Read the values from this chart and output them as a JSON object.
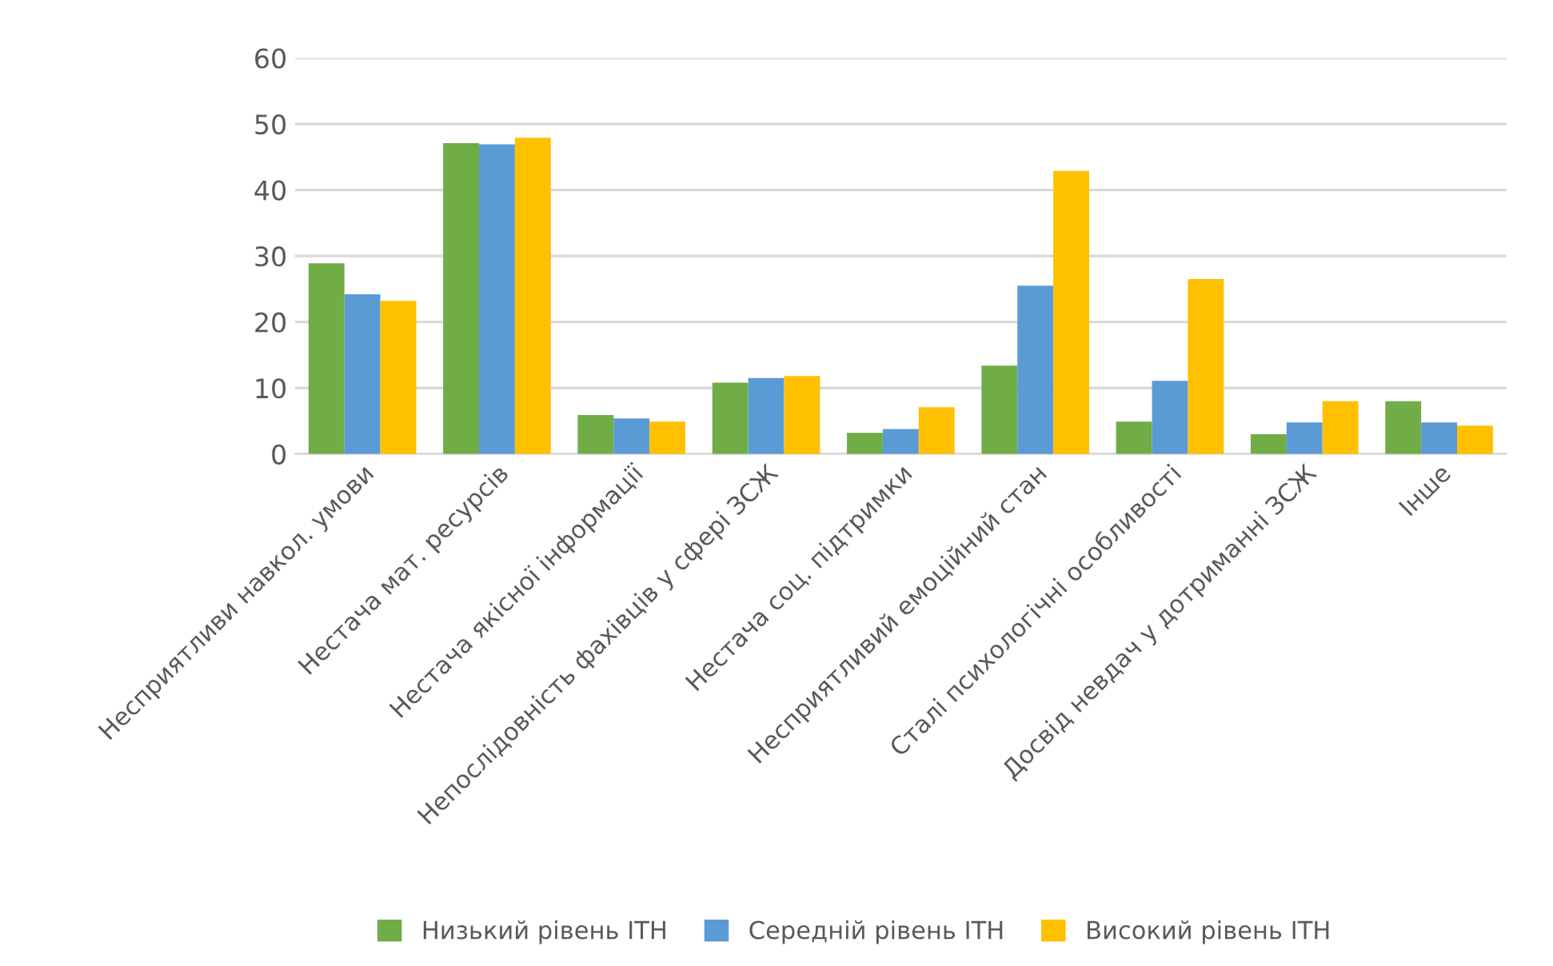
{
  "chart_data": {
    "type": "bar",
    "categories": [
      "Несприятливи навкол. умови",
      "Нестача мат. ресурсів",
      "Нестача якісної інформації",
      "Непослідовність фахівців у сфері ЗСЖ",
      "Нестача соц. підтримки",
      "Несприятливий емоційний стан",
      "Сталі психологічні особливості",
      "Досвід невдач у дотриманні ЗСЖ",
      "Інше"
    ],
    "series": [
      {
        "name": "Низький рівень ІТН",
        "color": "#70ad47",
        "values": [
          28.9,
          47.1,
          5.9,
          10.8,
          3.2,
          13.4,
          4.9,
          3.0,
          8.0
        ]
      },
      {
        "name": "Середній рівень ІТН",
        "color": "#5b9bd5",
        "values": [
          24.2,
          46.9,
          5.4,
          11.5,
          3.8,
          25.5,
          11.1,
          4.8,
          4.8
        ]
      },
      {
        "name": "Високий рівень ІТН",
        "color": "#ffc000",
        "values": [
          23.2,
          47.9,
          4.9,
          11.8,
          7.1,
          42.9,
          26.5,
          8.0,
          4.3
        ]
      }
    ],
    "ylim": [
      0,
      60
    ],
    "yticks": [
      0,
      10,
      20,
      30,
      40,
      50,
      60
    ],
    "grid": "y",
    "legend": "bottom"
  }
}
